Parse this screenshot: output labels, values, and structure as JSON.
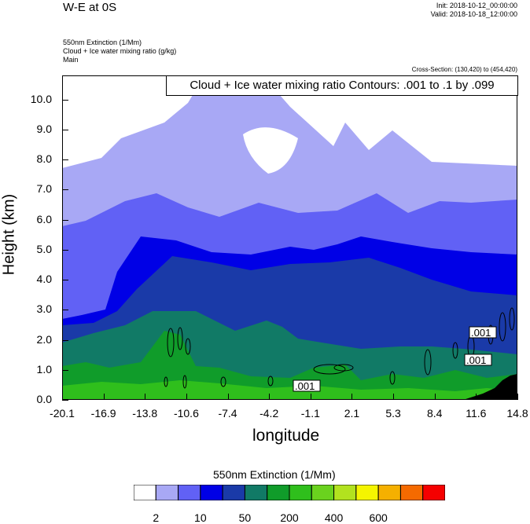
{
  "header": {
    "title": "W-E at 0S",
    "init": "Init: 2018-10-12_00:00:00",
    "valid": "Valid: 2018-10-18_12:00:00",
    "field1": "550nm Extinction   (1/Mm)",
    "field2": "Cloud + Ice water mixing ratio   (g/kg)",
    "field3": "Main",
    "cross_section": "Cross-Section: (130,420) to (454,420)"
  },
  "contour_note": "Cloud + Ice water mixing ratio Contours: .001 to .1 by .099",
  "contour_labels": [
    ".001",
    ".001",
    ".001",
    ".001"
  ],
  "colorbar": {
    "title": "550nm Extinction  (1/Mm)",
    "colors": [
      "#ffffff",
      "#a8a8f5",
      "#6161f5",
      "#0000e6",
      "#1a3aa8",
      "#117a66",
      "#109c2a",
      "#2fbf1c",
      "#6ad21e",
      "#b2e21f",
      "#f5f500",
      "#f5b000",
      "#f56a00",
      "#f50000"
    ],
    "labels": [
      "2",
      "10",
      "50",
      "200",
      "400",
      "600"
    ]
  },
  "chart_data": {
    "type": "heatmap",
    "title": "W-E at 0S",
    "xlabel": "longitude",
    "ylabel": "Height (km)",
    "xlim": [
      -20.1,
      14.8
    ],
    "ylim": [
      0,
      10.8
    ],
    "xticks": [
      "-20.1",
      "-16.9",
      "-13.8",
      "-10.6",
      "-7.4",
      "-4.2",
      "-1.1",
      "2.1",
      "5.3",
      "8.4",
      "11.6",
      "14.8"
    ],
    "yticks": [
      "0.0",
      "1.0",
      "2.0",
      "3.0",
      "4.0",
      "5.0",
      "6.0",
      "7.0",
      "8.0",
      "9.0",
      "10.0"
    ],
    "levels_extinction_per_Mm": [
      2,
      10,
      50,
      200,
      400,
      600
    ],
    "contour_field": "Cloud + Ice water mixing ratio",
    "contour_range_g_per_kg": [
      0.001,
      0.1
    ],
    "contour_interval": 0.099
  }
}
